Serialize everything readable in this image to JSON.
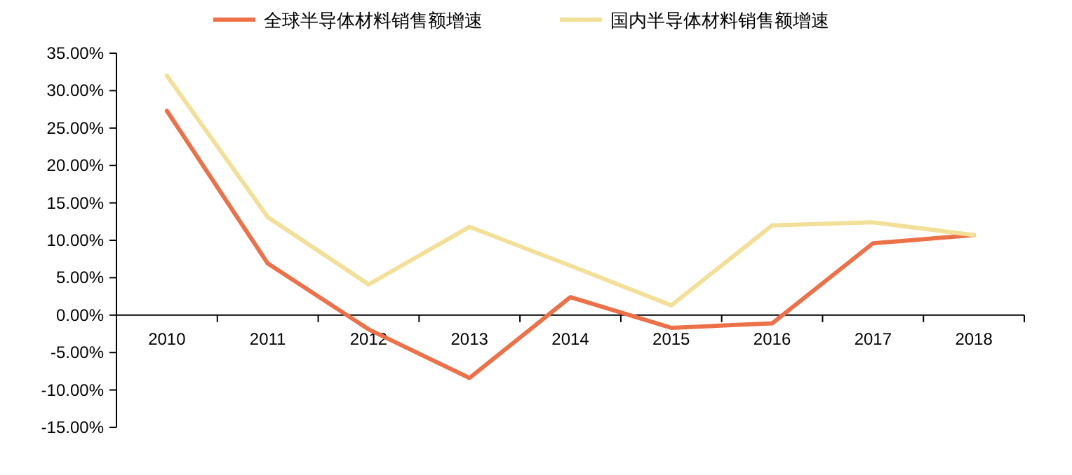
{
  "chart_data": {
    "type": "line",
    "categories": [
      "2010",
      "2011",
      "2012",
      "2013",
      "2014",
      "2015",
      "2016",
      "2017",
      "2018"
    ],
    "series": [
      {
        "name": "全球半导体材料销售额增速",
        "color": "#ed7148",
        "values": [
          27.3,
          6.9,
          -1.9,
          -8.4,
          2.4,
          -1.7,
          -1.1,
          9.6,
          10.7
        ]
      },
      {
        "name": "国内半导体材料销售额增速",
        "color": "#f2df98",
        "values": [
          32.0,
          13.1,
          4.1,
          11.8,
          6.6,
          1.3,
          12.0,
          12.4,
          10.7
        ]
      }
    ],
    "ylim": [
      -15,
      35
    ],
    "yticks": [
      {
        "value": -15,
        "label": "-15.00%"
      },
      {
        "value": -10,
        "label": "-10.00%"
      },
      {
        "value": -5,
        "label": "-5.00%"
      },
      {
        "value": 0,
        "label": "0.00%"
      },
      {
        "value": 5,
        "label": "5.00%"
      },
      {
        "value": 10,
        "label": "10.00%"
      },
      {
        "value": 15,
        "label": "15.00%"
      },
      {
        "value": 20,
        "label": "20.00%"
      },
      {
        "value": 25,
        "label": "25.00%"
      },
      {
        "value": 30,
        "label": "30.00%"
      },
      {
        "value": 35,
        "label": "35.00%"
      }
    ],
    "legend": "top",
    "grid": false,
    "marker": "none",
    "line_style": "solid"
  }
}
